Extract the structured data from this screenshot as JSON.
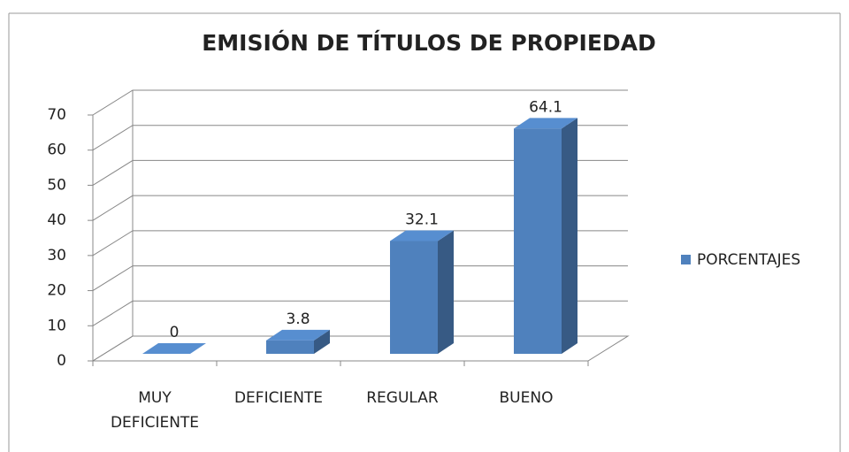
{
  "chart_data": {
    "type": "bar3d",
    "title": "EMISIÓN DE TÍTULOS DE PROPIEDAD",
    "categories": [
      "MUY DEFICIENTE",
      "DEFICIENTE",
      "REGULAR",
      "BUENO"
    ],
    "series": [
      {
        "name": "PORCENTAJES",
        "color": "#4f81bd",
        "values": [
          0,
          3.8,
          32.1,
          64.1
        ]
      }
    ],
    "ylim": [
      0,
      70
    ],
    "yticks": [
      0,
      10,
      20,
      30,
      40,
      50,
      60,
      70
    ],
    "grid": true,
    "legend": "right"
  }
}
